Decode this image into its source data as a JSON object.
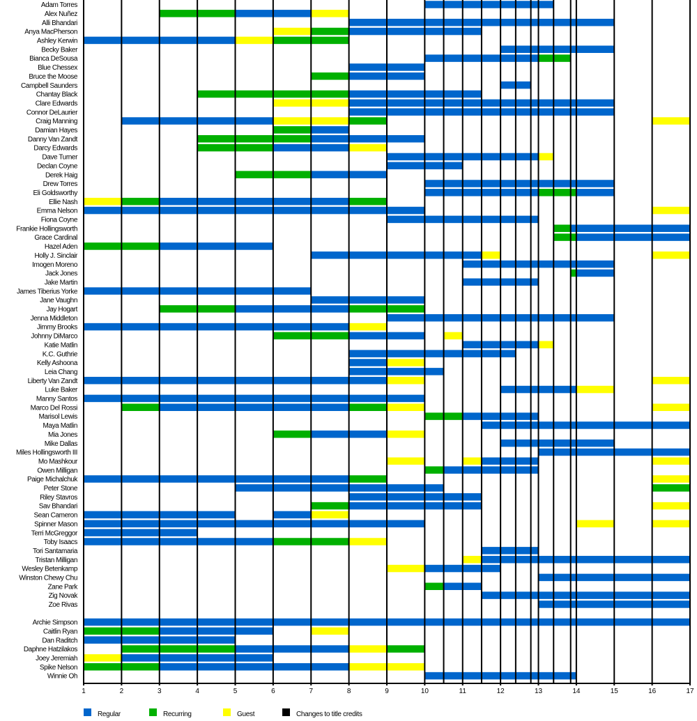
{
  "chart_data": {
    "type": "gantt",
    "x_axis": {
      "min": 1,
      "max": 17,
      "ticks": [
        1,
        2,
        3,
        4,
        5,
        6,
        7,
        8,
        9,
        10,
        11,
        12,
        13,
        14,
        15,
        16,
        17
      ]
    },
    "title_credit_changes": [
      10.5,
      11.5,
      12.4,
      12.8,
      13.4,
      13.85
    ],
    "colors": {
      "regular": "#0066CC",
      "recurring": "#00B000",
      "guest": "#FFFF00",
      "credits": "#000000"
    },
    "legend": [
      {
        "key": "regular",
        "label": "Regular"
      },
      {
        "key": "recurring",
        "label": "Recurring"
      },
      {
        "key": "guest",
        "label": "Guest"
      },
      {
        "key": "credits",
        "label": "Changes to title credits"
      }
    ],
    "rows": [
      {
        "name": "Adam Torres",
        "bars": [
          [
            10,
            13.4,
            "regular"
          ]
        ]
      },
      {
        "name": "Alex Nuñez",
        "bars": [
          [
            3,
            5,
            "recurring"
          ],
          [
            5,
            7,
            "regular"
          ],
          [
            7,
            8,
            "guest"
          ]
        ]
      },
      {
        "name": "Alli Bhandari",
        "bars": [
          [
            8,
            15,
            "regular"
          ]
        ]
      },
      {
        "name": "Anya MacPherson",
        "bars": [
          [
            6,
            7,
            "guest"
          ],
          [
            7,
            8,
            "recurring"
          ],
          [
            8,
            11.5,
            "regular"
          ]
        ]
      },
      {
        "name": "Ashley Kerwin",
        "bars": [
          [
            1,
            5,
            "regular"
          ],
          [
            5,
            6,
            "guest"
          ],
          [
            6,
            8,
            "recurring"
          ]
        ]
      },
      {
        "name": "Becky Baker",
        "bars": [
          [
            12,
            15,
            "regular"
          ]
        ]
      },
      {
        "name": "Bianca DeSousa",
        "bars": [
          [
            10,
            13,
            "regular"
          ],
          [
            13,
            13.85,
            "recurring"
          ]
        ]
      },
      {
        "name": "Blue Chessex",
        "bars": [
          [
            8,
            10,
            "regular"
          ]
        ]
      },
      {
        "name": "Bruce the Moose",
        "bars": [
          [
            7,
            8,
            "recurring"
          ],
          [
            8,
            10,
            "regular"
          ]
        ]
      },
      {
        "name": "Campbell Saunders",
        "bars": [
          [
            12,
            12.8,
            "regular"
          ]
        ]
      },
      {
        "name": "Chantay Black",
        "bars": [
          [
            4,
            8,
            "recurring"
          ],
          [
            8,
            11.5,
            "regular"
          ]
        ]
      },
      {
        "name": "Clare Edwards",
        "bars": [
          [
            6,
            8,
            "guest"
          ],
          [
            8,
            15,
            "regular"
          ]
        ]
      },
      {
        "name": "Connor DeLaurier",
        "bars": [
          [
            8,
            15,
            "regular"
          ]
        ]
      },
      {
        "name": "Craig Manning",
        "bars": [
          [
            2,
            6,
            "regular"
          ],
          [
            6,
            8,
            "guest"
          ],
          [
            8,
            9,
            "recurring"
          ],
          [
            16,
            17,
            "guest"
          ]
        ]
      },
      {
        "name": "Damian Hayes",
        "bars": [
          [
            6,
            7,
            "recurring"
          ],
          [
            7,
            8,
            "regular"
          ]
        ]
      },
      {
        "name": "Danny Van Zandt",
        "bars": [
          [
            4,
            7,
            "recurring"
          ],
          [
            7,
            10,
            "regular"
          ]
        ]
      },
      {
        "name": "Darcy Edwards",
        "bars": [
          [
            4,
            6,
            "recurring"
          ],
          [
            6,
            8,
            "regular"
          ],
          [
            8,
            9,
            "guest"
          ]
        ]
      },
      {
        "name": "Dave Turner",
        "bars": [
          [
            9,
            13,
            "regular"
          ],
          [
            13,
            13.4,
            "guest"
          ]
        ]
      },
      {
        "name": "Declan Coyne",
        "bars": [
          [
            9,
            11,
            "regular"
          ]
        ]
      },
      {
        "name": "Derek Haig",
        "bars": [
          [
            5,
            7,
            "recurring"
          ],
          [
            7,
            9,
            "regular"
          ]
        ]
      },
      {
        "name": "Drew Torres",
        "bars": [
          [
            10,
            15,
            "regular"
          ]
        ]
      },
      {
        "name": "Eli Goldsworthy",
        "bars": [
          [
            10,
            13,
            "regular"
          ],
          [
            13,
            14,
            "recurring"
          ],
          [
            14,
            15,
            "regular"
          ]
        ]
      },
      {
        "name": "Ellie Nash",
        "bars": [
          [
            1,
            2,
            "guest"
          ],
          [
            2,
            3,
            "recurring"
          ],
          [
            3,
            8,
            "regular"
          ],
          [
            8,
            9,
            "recurring"
          ]
        ]
      },
      {
        "name": "Emma Nelson",
        "bars": [
          [
            1,
            10,
            "regular"
          ],
          [
            16,
            17,
            "guest"
          ]
        ]
      },
      {
        "name": "Fiona Coyne",
        "bars": [
          [
            9,
            13,
            "regular"
          ]
        ]
      },
      {
        "name": "Frankie Hollingsworth",
        "bars": [
          [
            13.4,
            13.85,
            "recurring"
          ],
          [
            13.85,
            17,
            "regular"
          ]
        ]
      },
      {
        "name": "Grace Cardinal",
        "bars": [
          [
            13.4,
            14,
            "recurring"
          ],
          [
            14,
            17,
            "regular"
          ]
        ]
      },
      {
        "name": "Hazel Aden",
        "bars": [
          [
            1,
            3,
            "recurring"
          ],
          [
            3,
            6,
            "regular"
          ]
        ]
      },
      {
        "name": "Holly J. Sinclair",
        "bars": [
          [
            7,
            11.5,
            "regular"
          ],
          [
            11.5,
            12,
            "guest"
          ],
          [
            16,
            17,
            "guest"
          ]
        ]
      },
      {
        "name": "Imogen Moreno",
        "bars": [
          [
            11,
            15,
            "regular"
          ]
        ]
      },
      {
        "name": "Jack Jones",
        "bars": [
          [
            13.85,
            14,
            "recurring"
          ],
          [
            14,
            15,
            "regular"
          ]
        ]
      },
      {
        "name": "Jake Martin",
        "bars": [
          [
            11,
            13,
            "regular"
          ]
        ]
      },
      {
        "name": "James Tiberius Yorke",
        "bars": [
          [
            1,
            7,
            "regular"
          ]
        ]
      },
      {
        "name": "Jane Vaughn",
        "bars": [
          [
            7,
            10,
            "regular"
          ]
        ]
      },
      {
        "name": "Jay Hogart",
        "bars": [
          [
            3,
            5,
            "recurring"
          ],
          [
            5,
            8,
            "regular"
          ],
          [
            8,
            10,
            "recurring"
          ]
        ]
      },
      {
        "name": "Jenna Middleton",
        "bars": [
          [
            9,
            15,
            "regular"
          ]
        ]
      },
      {
        "name": "Jimmy Brooks",
        "bars": [
          [
            1,
            8,
            "regular"
          ],
          [
            8,
            9,
            "guest"
          ]
        ]
      },
      {
        "name": "Johnny DiMarco",
        "bars": [
          [
            6,
            8,
            "recurring"
          ],
          [
            8,
            10,
            "regular"
          ],
          [
            10.5,
            11,
            "guest"
          ]
        ]
      },
      {
        "name": "Katie Matlin",
        "bars": [
          [
            11,
            13,
            "regular"
          ],
          [
            13,
            13.4,
            "guest"
          ]
        ]
      },
      {
        "name": "K.C. Guthrie",
        "bars": [
          [
            8,
            12.4,
            "regular"
          ]
        ]
      },
      {
        "name": "Kelly Ashoona",
        "bars": [
          [
            8,
            9,
            "regular"
          ],
          [
            9,
            10,
            "guest"
          ]
        ]
      },
      {
        "name": "Leia Chang",
        "bars": [
          [
            8,
            10.5,
            "regular"
          ]
        ]
      },
      {
        "name": "Liberty Van Zandt",
        "bars": [
          [
            1,
            9,
            "regular"
          ],
          [
            9,
            10,
            "guest"
          ],
          [
            16,
            17,
            "guest"
          ]
        ]
      },
      {
        "name": "Luke Baker",
        "bars": [
          [
            12,
            14,
            "regular"
          ],
          [
            14,
            15,
            "guest"
          ]
        ]
      },
      {
        "name": "Manny Santos",
        "bars": [
          [
            1,
            10,
            "regular"
          ]
        ]
      },
      {
        "name": "Marco Del Rossi",
        "bars": [
          [
            2,
            3,
            "recurring"
          ],
          [
            3,
            8,
            "regular"
          ],
          [
            8,
            9,
            "recurring"
          ],
          [
            9,
            10,
            "guest"
          ],
          [
            16,
            17,
            "guest"
          ]
        ]
      },
      {
        "name": "Marisol Lewis",
        "bars": [
          [
            10,
            11,
            "recurring"
          ],
          [
            11,
            13,
            "regular"
          ]
        ]
      },
      {
        "name": "Maya Matlin",
        "bars": [
          [
            11.5,
            17,
            "regular"
          ]
        ]
      },
      {
        "name": "Mia Jones",
        "bars": [
          [
            6,
            7,
            "recurring"
          ],
          [
            7,
            9,
            "regular"
          ],
          [
            9,
            10,
            "guest"
          ]
        ]
      },
      {
        "name": "Mike Dallas",
        "bars": [
          [
            12,
            15,
            "regular"
          ]
        ]
      },
      {
        "name": "Miles Hollingsworth III",
        "bars": [
          [
            13,
            17,
            "regular"
          ]
        ]
      },
      {
        "name": "Mo Mashkour",
        "bars": [
          [
            9,
            10,
            "guest"
          ],
          [
            11,
            11.5,
            "guest"
          ],
          [
            11.5,
            13,
            "regular"
          ],
          [
            16,
            17,
            "guest"
          ]
        ]
      },
      {
        "name": "Owen Milligan",
        "bars": [
          [
            10,
            10.5,
            "recurring"
          ],
          [
            10.5,
            13,
            "regular"
          ]
        ]
      },
      {
        "name": "Paige Michalchuk",
        "bars": [
          [
            1,
            8,
            "regular"
          ],
          [
            8,
            9,
            "recurring"
          ],
          [
            16,
            17,
            "guest"
          ]
        ]
      },
      {
        "name": "Peter Stone",
        "bars": [
          [
            5,
            10.5,
            "regular"
          ],
          [
            16,
            17,
            "recurring"
          ]
        ]
      },
      {
        "name": "Riley Stavros",
        "bars": [
          [
            8,
            11.5,
            "regular"
          ]
        ]
      },
      {
        "name": "Sav Bhandari",
        "bars": [
          [
            7,
            8,
            "recurring"
          ],
          [
            8,
            11.5,
            "regular"
          ],
          [
            16,
            17,
            "guest"
          ]
        ]
      },
      {
        "name": "Sean Cameron",
        "bars": [
          [
            1,
            5,
            "regular"
          ],
          [
            6,
            7,
            "regular"
          ],
          [
            7,
            8,
            "guest"
          ]
        ]
      },
      {
        "name": "Spinner Mason",
        "bars": [
          [
            1,
            10,
            "regular"
          ],
          [
            14,
            15,
            "guest"
          ],
          [
            16,
            17,
            "guest"
          ]
        ]
      },
      {
        "name": "Terri McGreggor",
        "bars": [
          [
            1,
            4,
            "regular"
          ]
        ]
      },
      {
        "name": "Toby Isaacs",
        "bars": [
          [
            1,
            6,
            "regular"
          ],
          [
            6,
            8,
            "recurring"
          ],
          [
            8,
            9,
            "guest"
          ]
        ]
      },
      {
        "name": "Tori Santamaria",
        "bars": [
          [
            11.5,
            13,
            "regular"
          ]
        ]
      },
      {
        "name": "Tristan Milligan",
        "bars": [
          [
            11,
            11.5,
            "guest"
          ],
          [
            11.5,
            17,
            "regular"
          ]
        ]
      },
      {
        "name": "Wesley Betenkamp",
        "bars": [
          [
            9,
            10,
            "guest"
          ],
          [
            10,
            12,
            "regular"
          ]
        ]
      },
      {
        "name": "Winston Chewy Chu",
        "bars": [
          [
            13,
            17,
            "regular"
          ]
        ]
      },
      {
        "name": "Zane Park",
        "bars": [
          [
            10,
            10.5,
            "recurring"
          ],
          [
            10.5,
            11.5,
            "regular"
          ]
        ]
      },
      {
        "name": "Zig Novak",
        "bars": [
          [
            11.5,
            17,
            "regular"
          ]
        ]
      },
      {
        "name": "Zoe Rivas",
        "bars": [
          [
            13,
            17,
            "regular"
          ]
        ]
      }
    ],
    "rows_group2": [
      {
        "name": "Archie Simpson",
        "bars": [
          [
            1,
            17,
            "regular"
          ]
        ]
      },
      {
        "name": "Caitlin Ryan",
        "bars": [
          [
            1,
            3,
            "recurring"
          ],
          [
            3,
            6,
            "regular"
          ],
          [
            7,
            8,
            "guest"
          ]
        ]
      },
      {
        "name": "Dan Raditch",
        "bars": [
          [
            1,
            5,
            "regular"
          ]
        ]
      },
      {
        "name": "Daphne Hatzilakos",
        "bars": [
          [
            2,
            5,
            "recurring"
          ],
          [
            5,
            8,
            "regular"
          ],
          [
            8,
            9,
            "guest"
          ],
          [
            9,
            10,
            "recurring"
          ]
        ]
      },
      {
        "name": "Joey Jeremiah",
        "bars": [
          [
            1,
            2,
            "guest"
          ],
          [
            2,
            6,
            "regular"
          ]
        ]
      },
      {
        "name": "Spike Nelson",
        "bars": [
          [
            1,
            3,
            "recurring"
          ],
          [
            3,
            8,
            "regular"
          ],
          [
            8,
            10,
            "guest"
          ]
        ]
      },
      {
        "name": "Winnie Oh",
        "bars": [
          [
            10,
            14,
            "regular"
          ]
        ]
      }
    ]
  }
}
